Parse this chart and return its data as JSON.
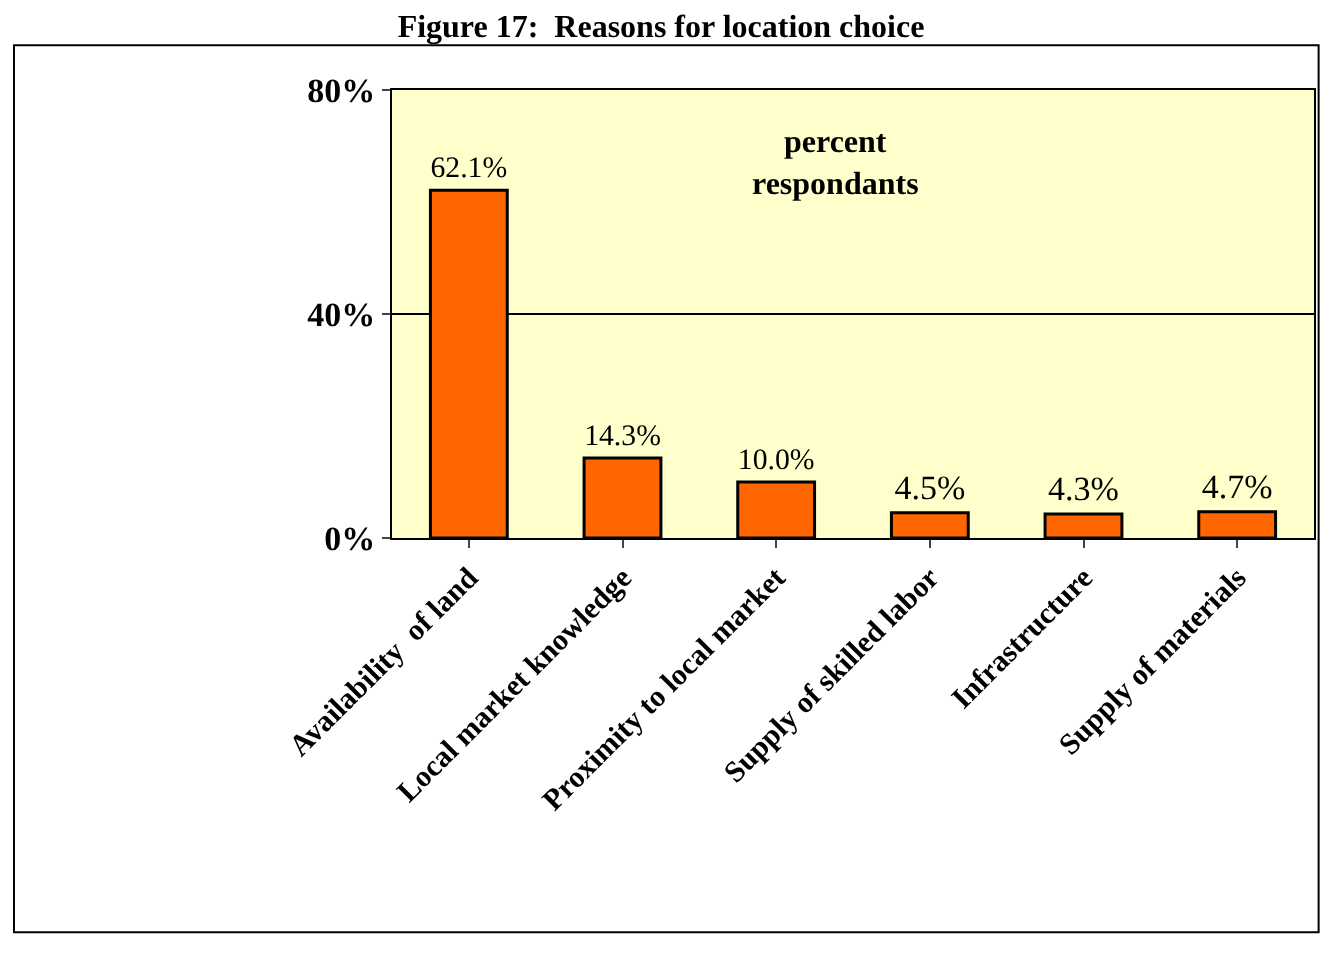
{
  "chart_data": {
    "type": "bar",
    "title": "Figure 17:  Reasons for location choice",
    "categories": [
      "Availability  of land",
      "Local market knowledge",
      "Proximity to local market",
      "Supply of skilled labor",
      "Infrastructure",
      "Supply of materials"
    ],
    "values": [
      62.1,
      14.3,
      10.0,
      4.5,
      4.3,
      4.7
    ],
    "value_labels": [
      "62.1%",
      "14.3%",
      "10.0%",
      "4.5%",
      "4.3%",
      "4.7%"
    ],
    "color": "#ff6600",
    "ylim": [
      0,
      80
    ],
    "yticks": [
      {
        "value": 0,
        "label": "0%"
      },
      {
        "value": 40,
        "label": "40%"
      },
      {
        "value": 80,
        "label": "80%"
      }
    ],
    "grid": "y",
    "legend": false,
    "annotations": [
      "percent\nrespondants"
    ]
  }
}
